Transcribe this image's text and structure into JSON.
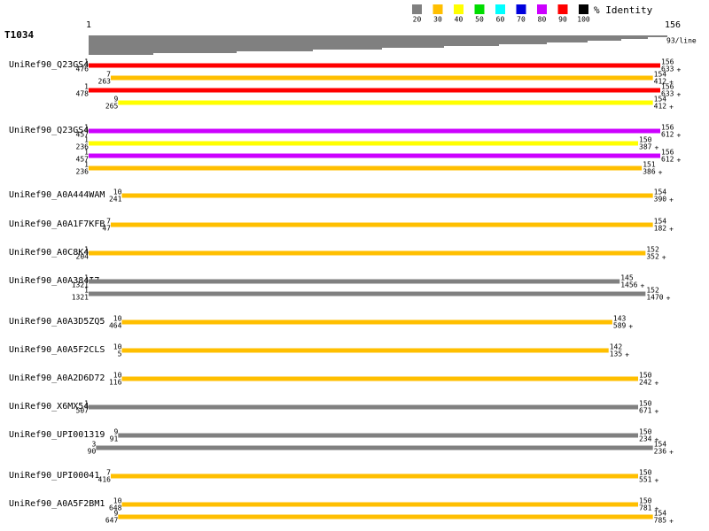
{
  "legend": {
    "title": "% Identity",
    "items": [
      {
        "label": "20",
        "color": "#808080"
      },
      {
        "label": "30",
        "color": "#ffbf00"
      },
      {
        "label": "40",
        "color": "#ffff00"
      },
      {
        "label": "50",
        "color": "#00dd00"
      },
      {
        "label": "60",
        "color": "#00ffff"
      },
      {
        "label": "70",
        "color": "#0000dd"
      },
      {
        "label": "80",
        "color": "#cc00ff"
      },
      {
        "label": "90",
        "color": "#ff0000"
      },
      {
        "label": "100",
        "color": "#000000"
      }
    ]
  },
  "query": {
    "name": "T1034",
    "start": 1,
    "end": 156,
    "note": "93/line"
  },
  "strand": "+",
  "hits": [
    {
      "name": "UniRef90_Q23GS4",
      "alignments": [
        {
          "q_start": 1,
          "q_end": 156,
          "t_start": 476,
          "t_end": 633,
          "color": "#ff0000"
        },
        {
          "q_start": 7,
          "q_end": 154,
          "t_start": 263,
          "t_end": 412,
          "color": "#ffbf00"
        },
        {
          "q_start": 1,
          "q_end": 156,
          "t_start": 478,
          "t_end": 633,
          "color": "#ff0000"
        },
        {
          "q_start": 9,
          "q_end": 154,
          "t_start": 265,
          "t_end": 412,
          "color": "#ffff00"
        }
      ]
    },
    {
      "name": "UniRef90_Q23GS4",
      "alignments": [
        {
          "q_start": 1,
          "q_end": 156,
          "t_start": 457,
          "t_end": 612,
          "color": "#cc00ff"
        },
        {
          "q_start": 1,
          "q_end": 150,
          "t_start": 236,
          "t_end": 387,
          "color": "#ffff00"
        },
        {
          "q_start": 1,
          "q_end": 156,
          "t_start": 457,
          "t_end": 612,
          "color": "#cc00ff"
        },
        {
          "q_start": 1,
          "q_end": 151,
          "t_start": 236,
          "t_end": 386,
          "color": "#ffbf00"
        }
      ]
    },
    {
      "name": "UniRef90_A0A444WAM",
      "alignments": [
        {
          "q_start": 10,
          "q_end": 154,
          "t_start": 241,
          "t_end": 390,
          "color": "#ffbf00"
        }
      ]
    },
    {
      "name": "UniRef90_A0A1F7KFB",
      "alignments": [
        {
          "q_start": 7,
          "q_end": 154,
          "t_start": 47,
          "t_end": 182,
          "color": "#ffbf00"
        }
      ]
    },
    {
      "name": "UniRef90_A0C8K4",
      "alignments": [
        {
          "q_start": 1,
          "q_end": 152,
          "t_start": 204,
          "t_end": 352,
          "color": "#ffbf00"
        }
      ]
    },
    {
      "name": "UniRef90_A0A384I7",
      "alignments": [
        {
          "q_start": 1,
          "q_end": 145,
          "t_start": 1321,
          "t_end": 1456,
          "color": "#808080"
        },
        {
          "q_start": 1,
          "q_end": 152,
          "t_start": 1321,
          "t_end": 1470,
          "color": "#808080"
        }
      ]
    },
    {
      "name": "UniRef90_A0A3D5ZQ5",
      "alignments": [
        {
          "q_start": 10,
          "q_end": 143,
          "t_start": 464,
          "t_end": 589,
          "color": "#ffbf00"
        }
      ]
    },
    {
      "name": "UniRef90_A0A5F2CLS",
      "alignments": [
        {
          "q_start": 10,
          "q_end": 142,
          "t_start": 5,
          "t_end": 135,
          "color": "#ffbf00"
        }
      ]
    },
    {
      "name": "UniRef90_A0A2D6D72",
      "alignments": [
        {
          "q_start": 10,
          "q_end": 150,
          "t_start": 116,
          "t_end": 242,
          "color": "#ffbf00"
        }
      ]
    },
    {
      "name": "UniRef90_X6MX54",
      "alignments": [
        {
          "q_start": 1,
          "q_end": 150,
          "t_start": 507,
          "t_end": 671,
          "color": "#808080"
        }
      ]
    },
    {
      "name": "UniRef90_UPI001319",
      "alignments": [
        {
          "q_start": 9,
          "q_end": 150,
          "t_start": 91,
          "t_end": 234,
          "color": "#808080"
        },
        {
          "q_start": 3,
          "q_end": 154,
          "t_start": 90,
          "t_end": 236,
          "color": "#808080"
        }
      ]
    },
    {
      "name": "UniRef90_UPI00041",
      "alignments": [
        {
          "q_start": 7,
          "q_end": 150,
          "t_start": 416,
          "t_end": 551,
          "color": "#ffbf00"
        }
      ]
    },
    {
      "name": "UniRef90_A0A5F2BM1",
      "alignments": [
        {
          "q_start": 10,
          "q_end": 150,
          "t_start": 648,
          "t_end": 781,
          "color": "#ffbf00"
        },
        {
          "q_start": 9,
          "q_end": 154,
          "t_start": 647,
          "t_end": 785,
          "color": "#ffbf00"
        }
      ]
    }
  ]
}
